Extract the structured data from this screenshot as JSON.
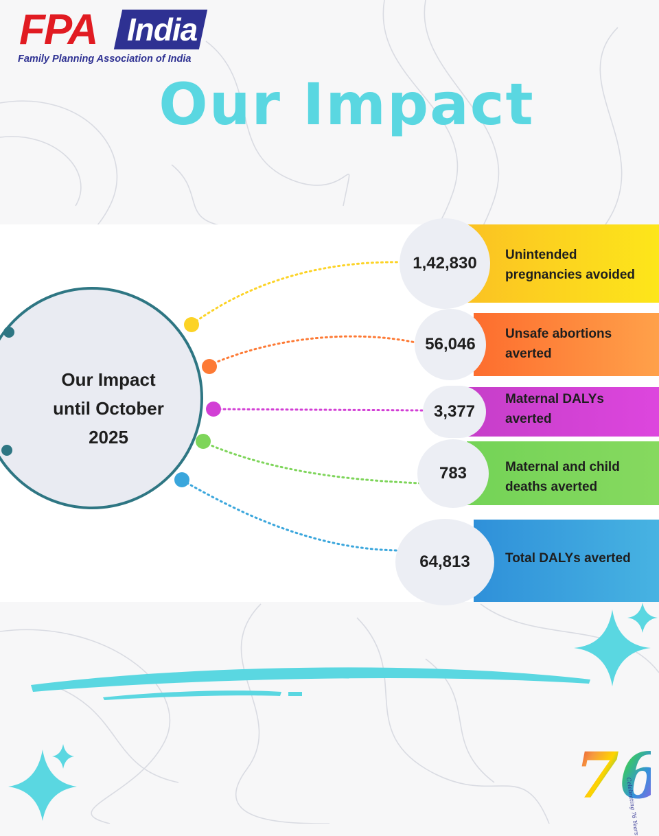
{
  "logo": {
    "brand": "FPA",
    "country": "India",
    "tagline": "Family Planning Association of India"
  },
  "title": "Our Impact",
  "hub": {
    "label_line1": "Our Impact",
    "label_line2": "until October",
    "label_line3": "2025"
  },
  "stats": [
    {
      "value": "1,42,830",
      "label_line1": "Unintended",
      "label_line2": "pregnancies avoided",
      "color": "#fccd22",
      "dot_color": "#fcd326"
    },
    {
      "value": "56,046",
      "label_line1": "Unsafe abortions",
      "label_line2": "averted",
      "color": "#fd7a35",
      "dot_color": "#fd7a35"
    },
    {
      "value": "3,377",
      "label_line1": "Maternal DALYs",
      "label_line2": "averted",
      "color": "#d23fd5",
      "dot_color": "#d23fd5"
    },
    {
      "value": "783",
      "label_line1": "Maternal and child",
      "label_line2": "deaths averted",
      "color": "#7ed55a",
      "dot_color": "#7ed55a"
    },
    {
      "value": "64,813",
      "label_line1": "Total DALYs averted",
      "label_line2": "",
      "color": "#3aa6dc",
      "dot_color": "#3aa6dc"
    }
  ],
  "badge": {
    "number": "76",
    "caption": "Celebrating 76 Years"
  },
  "colors": {
    "accent_cyan": "#5ad7e1",
    "hub_ring": "#2e7683",
    "brand_red": "#e11b22",
    "brand_blue": "#2e3192"
  },
  "icons": [
    "sparkle-icon",
    "sparkle-icon"
  ]
}
